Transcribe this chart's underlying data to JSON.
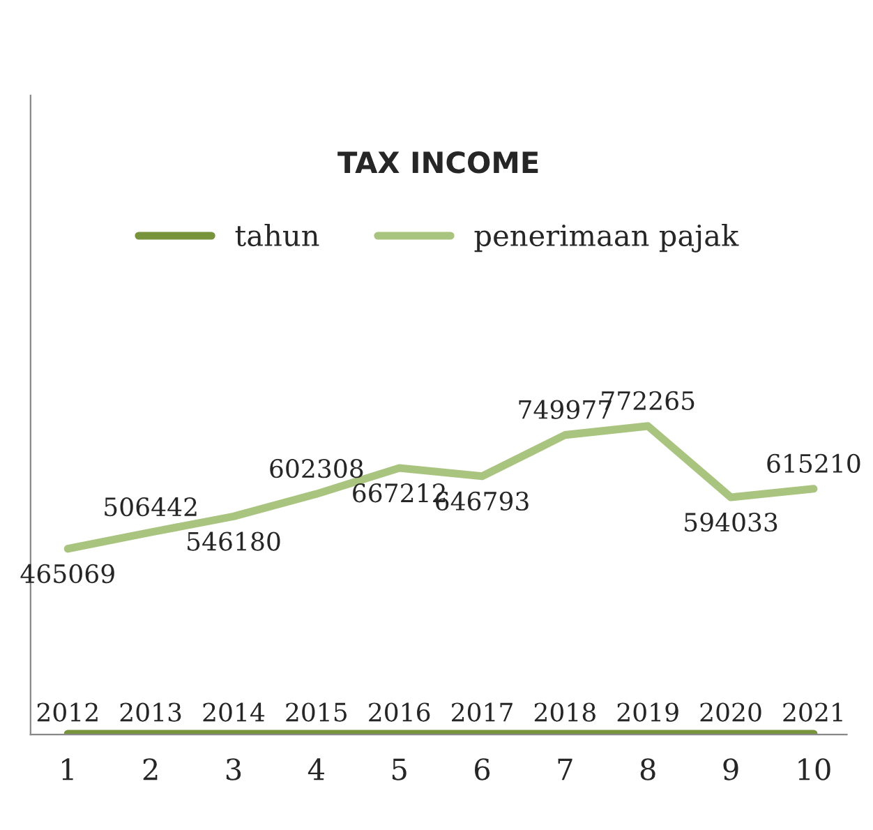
{
  "chart_data": {
    "type": "line",
    "title": "TAX INCOME",
    "categories": [
      "1",
      "2",
      "3",
      "4",
      "5",
      "6",
      "7",
      "8",
      "9",
      "10"
    ],
    "series": [
      {
        "name": "tahun",
        "color": "#77933c",
        "values": [
          2012,
          2013,
          2014,
          2015,
          2016,
          2017,
          2018,
          2019,
          2020,
          2021
        ]
      },
      {
        "name": "penerimaan pajak",
        "color": "#a9c47f",
        "values": [
          465069,
          506442,
          546180,
          602308,
          667212,
          646793,
          749977,
          772265,
          594033,
          615210
        ]
      }
    ],
    "ylim": [
      0,
      1600000
    ],
    "tick_labels": "x",
    "data_labels": true,
    "legend": "top",
    "grid": false,
    "marker": "none",
    "line_style": "solid"
  }
}
